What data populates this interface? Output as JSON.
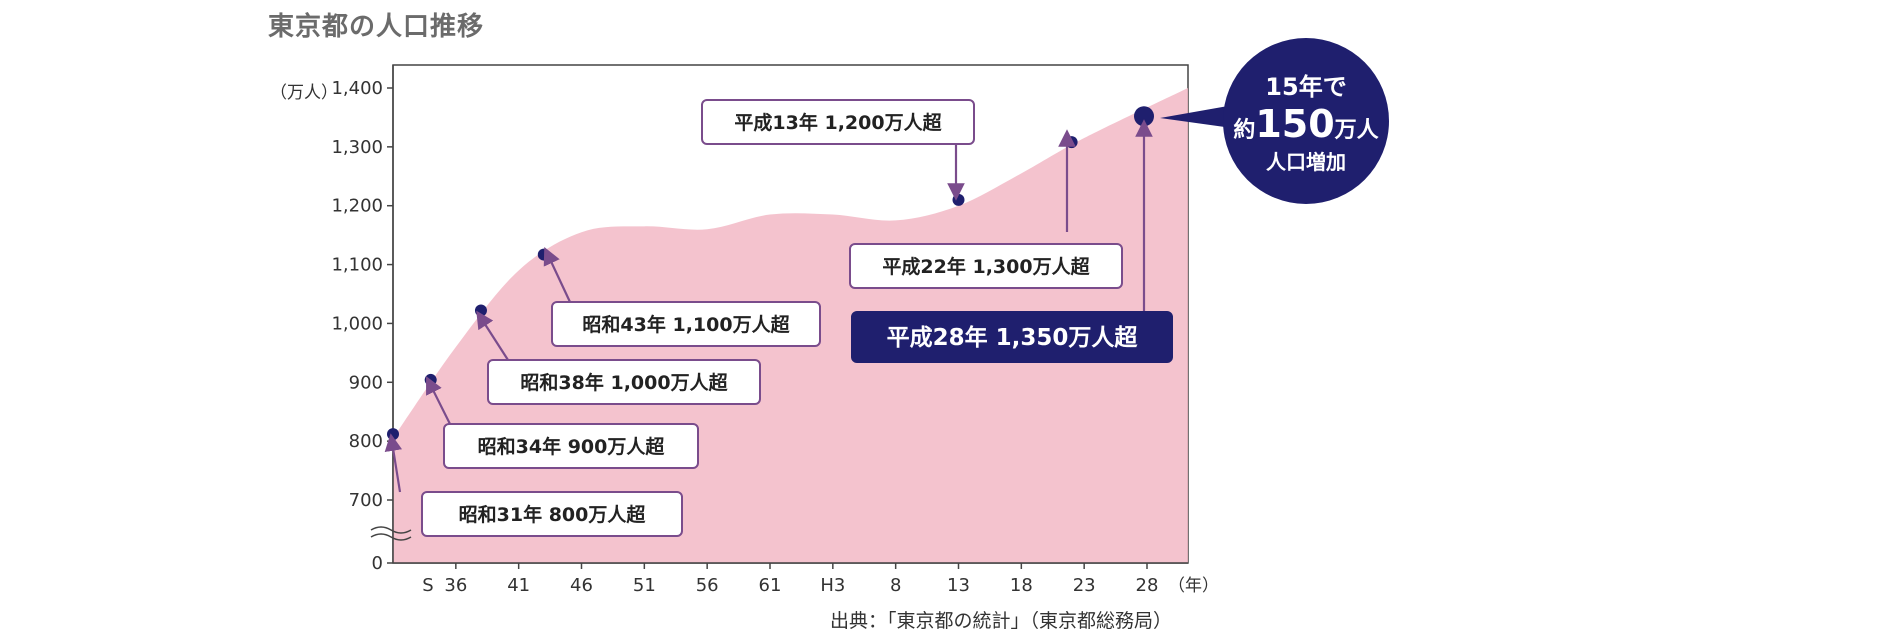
{
  "title": "東京都の人口推移",
  "source": "出典：「東京都の統計」（東京都総務局）",
  "chart_data": {
    "type": "area",
    "y_unit_label": "（万人）",
    "x_unit_label": "（年）",
    "y_ticks": [
      "0",
      "700",
      "800",
      "900",
      "1,000",
      "1,100",
      "1,200",
      "1,300",
      "1,400"
    ],
    "x_ticks": [
      "S",
      "36",
      "41",
      "46",
      "51",
      "56",
      "61",
      "H3",
      "8",
      "13",
      "18",
      "23",
      "28"
    ],
    "ylim": [
      700,
      1400
    ],
    "y_break": true,
    "fill_color": "#f2b8c6",
    "accent_color": "#1f1f6e",
    "series": [
      {
        "x": [
          "S31",
          "S36",
          "S41",
          "S46",
          "S51",
          "S56",
          "S61",
          "H3",
          "H8",
          "H13",
          "H18",
          "H23",
          "H28"
        ],
        "values": [
          805,
          960,
          1090,
          1155,
          1165,
          1160,
          1185,
          1185,
          1175,
          1200,
          1255,
          1315,
          1400
        ]
      }
    ],
    "points": [
      {
        "x": "S31",
        "value": 812
      },
      {
        "x": "S34",
        "value": 904
      },
      {
        "x": "S38",
        "value": 1022
      },
      {
        "x": "S43",
        "value": 1117
      },
      {
        "x": "H13",
        "value": 1210
      },
      {
        "x": "H22",
        "value": 1308
      },
      {
        "x": "H28",
        "value": 1352
      }
    ],
    "annotations": [
      {
        "text": "昭和31年  800万人超",
        "point": 0
      },
      {
        "text": "昭和34年 900万人超",
        "point": 1
      },
      {
        "text": "昭和38年  1,000万人超",
        "point": 2
      },
      {
        "text": "昭和43年  1,100万人超",
        "point": 3
      },
      {
        "text": "平成13年  1,200万人超",
        "point": 4
      },
      {
        "text": "平成22年  1,300万人超",
        "point": 5
      },
      {
        "text": "平成28年  1,350万人超",
        "point": 6
      }
    ],
    "bubble": {
      "line1": "15年で",
      "line2a": "約",
      "line2b": "150",
      "line2c": "万人",
      "line3": "人口増加"
    }
  }
}
